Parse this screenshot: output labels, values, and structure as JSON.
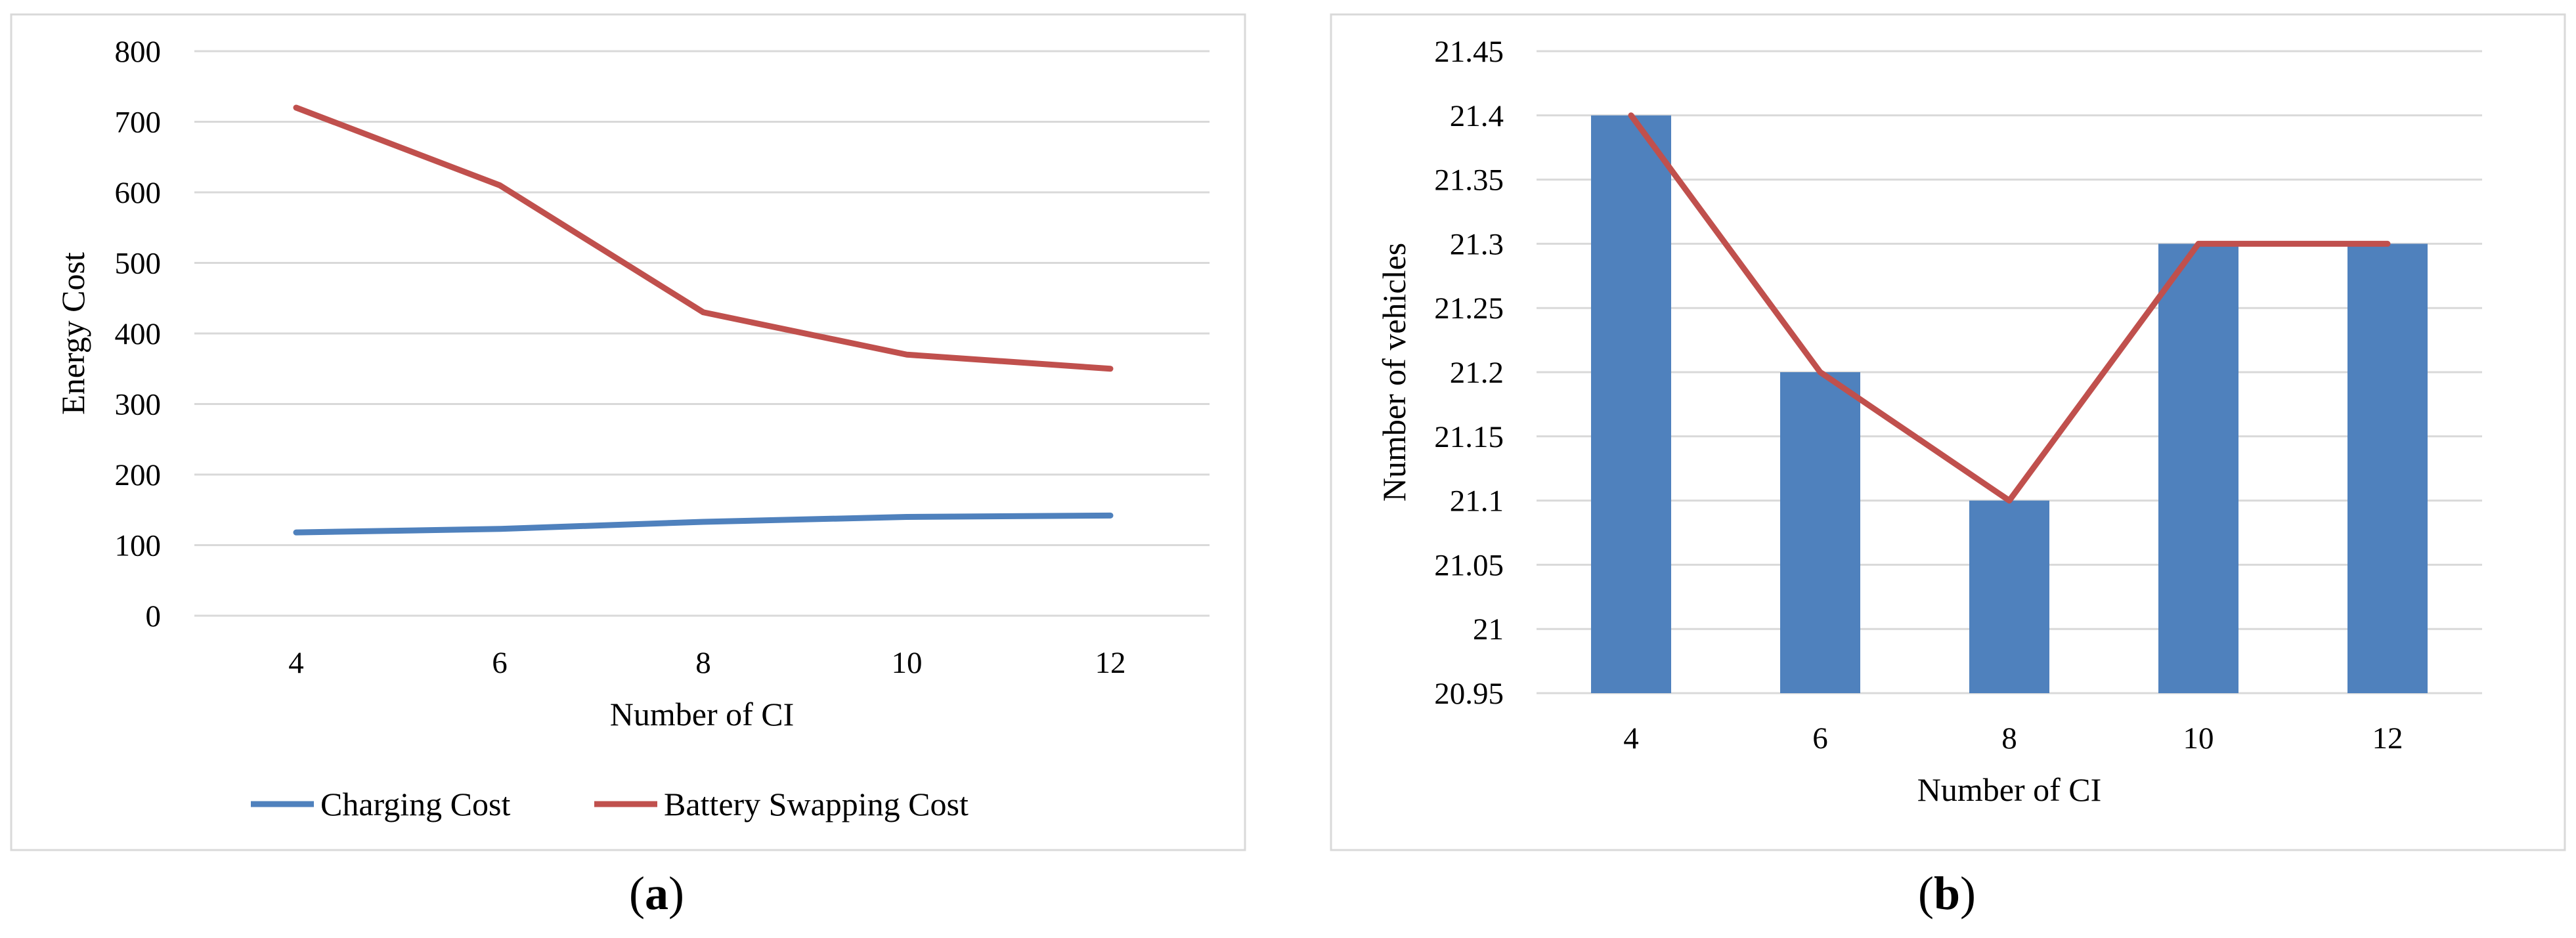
{
  "chart_data": [
    {
      "type": "line",
      "panel_label": "a",
      "title": "",
      "xlabel": "Number of CI",
      "ylabel": "Energy Cost",
      "x": [
        4,
        6,
        8,
        10,
        12
      ],
      "ylim": [
        0,
        800
      ],
      "yticks": [
        0,
        100,
        200,
        300,
        400,
        500,
        600,
        700,
        800
      ],
      "grid": true,
      "legend_position": "bottom",
      "series": [
        {
          "name": "Charging Cost",
          "color": "#4F81BD",
          "values": [
            118,
            123,
            133,
            140,
            142
          ]
        },
        {
          "name": "Battery Swapping Cost",
          "color": "#C0504D",
          "values": [
            720,
            610,
            430,
            370,
            350
          ]
        }
      ]
    },
    {
      "type": "bar",
      "panel_label": "b",
      "title": "",
      "xlabel": "Number of CI",
      "ylabel": "Number of vehicles",
      "categories": [
        "4",
        "6",
        "8",
        "10",
        "12"
      ],
      "ylim": [
        20.95,
        21.45
      ],
      "yticks": [
        "20.95",
        "21",
        "21.05",
        "21.1",
        "21.15",
        "21.2",
        "21.25",
        "21.3",
        "21.35",
        "21.4",
        "21.45"
      ],
      "grid": true,
      "bar_color": "#4F81BD",
      "line_color": "#C0504D",
      "values": [
        21.4,
        21.2,
        21.1,
        21.3,
        21.3
      ]
    }
  ]
}
